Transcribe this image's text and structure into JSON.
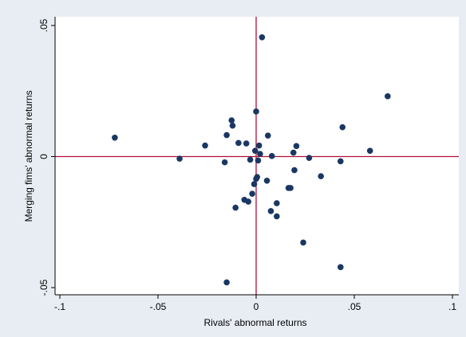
{
  "chart_data": {
    "type": "scatter",
    "title": "",
    "xlabel": "Rivals' abnormal returns",
    "ylabel": "Merging fims' abnormal returns",
    "xlim": [
      -0.1,
      0.1
    ],
    "ylim": [
      -0.05,
      0.05
    ],
    "xticks": [
      -0.1,
      -0.05,
      0,
      0.05,
      0.1
    ],
    "xtick_labels": [
      "-.1",
      "-.05",
      "0",
      ".05",
      ".1"
    ],
    "yticks": [
      -0.05,
      0,
      0.05
    ],
    "ytick_labels": [
      "-.05",
      "0",
      ".05"
    ],
    "reference_lines": {
      "x": 0,
      "y": 0
    },
    "grid": false,
    "legend": "none",
    "colors": {
      "background": "#e8edf3",
      "plot_area": "#ffffff",
      "marker": "#1a3763",
      "reference_line": "#b0103a"
    },
    "points": [
      {
        "x": 0.003,
        "y": 0.0455
      },
      {
        "x": 0.067,
        "y": 0.023
      },
      {
        "x": 0.0,
        "y": 0.0172
      },
      {
        "x": -0.0125,
        "y": 0.0138
      },
      {
        "x": -0.012,
        "y": 0.0118
      },
      {
        "x": 0.044,
        "y": 0.0112
      },
      {
        "x": -0.015,
        "y": 0.0082
      },
      {
        "x": 0.006,
        "y": 0.008
      },
      {
        "x": -0.072,
        "y": 0.0072
      },
      {
        "x": -0.009,
        "y": 0.0052
      },
      {
        "x": -0.005,
        "y": 0.005
      },
      {
        "x": -0.026,
        "y": 0.0042
      },
      {
        "x": 0.0015,
        "y": 0.0042
      },
      {
        "x": 0.0205,
        "y": 0.004
      },
      {
        "x": -0.0005,
        "y": 0.0022
      },
      {
        "x": 0.058,
        "y": 0.0022
      },
      {
        "x": 0.019,
        "y": 0.0015
      },
      {
        "x": 0.002,
        "y": 0.001
      },
      {
        "x": 0.008,
        "y": 0.0002
      },
      {
        "x": 0.027,
        "y": -0.0005
      },
      {
        "x": -0.039,
        "y": -0.0008
      },
      {
        "x": -0.003,
        "y": -0.0012
      },
      {
        "x": 0.001,
        "y": -0.0015
      },
      {
        "x": 0.043,
        "y": -0.0018
      },
      {
        "x": -0.016,
        "y": -0.0022
      },
      {
        "x": 0.0195,
        "y": -0.0052
      },
      {
        "x": 0.033,
        "y": -0.0075
      },
      {
        "x": 0.0005,
        "y": -0.0078
      },
      {
        "x": 0.0,
        "y": -0.0085
      },
      {
        "x": 0.0055,
        "y": -0.0092
      },
      {
        "x": -0.001,
        "y": -0.0105
      },
      {
        "x": 0.0165,
        "y": -0.012
      },
      {
        "x": 0.0175,
        "y": -0.012
      },
      {
        "x": -0.002,
        "y": -0.0142
      },
      {
        "x": -0.006,
        "y": -0.0165
      },
      {
        "x": -0.004,
        "y": -0.0172
      },
      {
        "x": 0.0105,
        "y": -0.0178
      },
      {
        "x": -0.0105,
        "y": -0.0195
      },
      {
        "x": 0.0075,
        "y": -0.0208
      },
      {
        "x": 0.0105,
        "y": -0.0228
      },
      {
        "x": 0.024,
        "y": -0.0328
      },
      {
        "x": 0.043,
        "y": -0.0422
      },
      {
        "x": -0.015,
        "y": -0.048
      }
    ]
  }
}
